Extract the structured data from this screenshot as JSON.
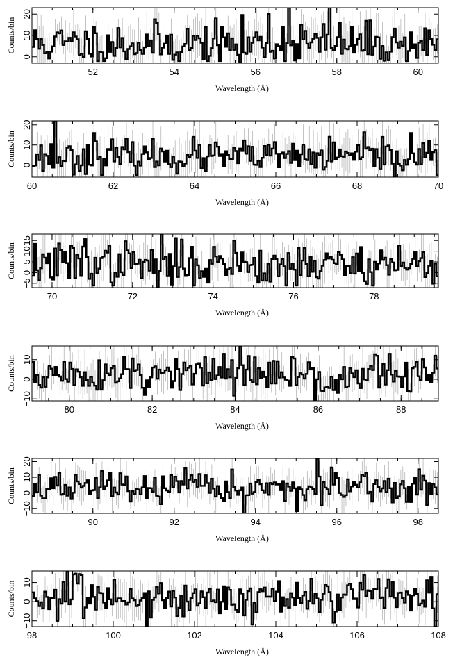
{
  "chart_data": [
    {
      "type": "line",
      "xlim": [
        50.5,
        60.5
      ],
      "ylim": [
        -3,
        23
      ],
      "xticks": [
        52,
        54,
        56,
        58,
        60
      ],
      "yticks": [
        0,
        10,
        20
      ],
      "xlabel": "Wavelength (Å)",
      "ylabel": "Counts/bin",
      "seed": 11,
      "base": 6,
      "amp": 5,
      "spikes": [
        [
          56.8,
          23
        ],
        [
          57.8,
          23
        ],
        [
          56.3,
          20
        ],
        [
          55.6,
          -3
        ],
        [
          57.1,
          15
        ]
      ],
      "series": [
        {
          "x_step": 0.05
        }
      ]
    },
    {
      "type": "line",
      "xlim": [
        60,
        70
      ],
      "ylim": [
        -6,
        22
      ],
      "xticks": [
        60,
        62,
        64,
        66,
        68,
        70
      ],
      "yticks": [
        0,
        10,
        20
      ],
      "xlabel": "Wavelength (Å)",
      "ylabel": "Counts/bin",
      "seed": 23,
      "base": 4,
      "amp": 4,
      "spikes": [
        [
          60.55,
          22
        ],
        [
          61.5,
          16
        ],
        [
          68.9,
          -6
        ],
        [
          68.6,
          14
        ],
        [
          69.3,
          16
        ]
      ],
      "series": [
        {
          "x_step": 0.05
        }
      ]
    },
    {
      "type": "line",
      "xlim": [
        69.5,
        79.6
      ],
      "ylim": [
        -7,
        18
      ],
      "xticks": [
        70,
        72,
        74,
        76,
        78
      ],
      "yticks": [
        -5,
        0,
        5,
        10,
        15
      ],
      "xlabel": "Wavelength (Å)",
      "ylabel": "Counts/bin",
      "seed": 37,
      "base": 4,
      "amp": 5,
      "spikes": [
        [
          72.7,
          18
        ],
        [
          72.6,
          -7
        ],
        [
          70.8,
          16
        ],
        [
          74.5,
          15
        ],
        [
          75.8,
          -6
        ]
      ],
      "series": [
        {
          "x_step": 0.05
        }
      ]
    },
    {
      "type": "line",
      "xlim": [
        79.1,
        88.9
      ],
      "ylim": [
        -11,
        17
      ],
      "xticks": [
        80,
        82,
        84,
        86,
        88
      ],
      "yticks": [
        -10,
        0,
        10
      ],
      "xlabel": "Wavelength (Å)",
      "ylabel": "Counts/bin",
      "seed": 51,
      "base": 2,
      "amp": 5,
      "spikes": [
        [
          84.1,
          17
        ],
        [
          85.9,
          -11
        ],
        [
          81.8,
          -8
        ],
        [
          83.7,
          13
        ],
        [
          87.7,
          13
        ]
      ],
      "series": [
        {
          "x_step": 0.05
        }
      ]
    },
    {
      "type": "line",
      "xlim": [
        88.5,
        98.5
      ],
      "ylim": [
        -13,
        22
      ],
      "xticks": [
        90,
        92,
        94,
        96,
        98
      ],
      "yticks": [
        -10,
        0,
        10,
        20
      ],
      "xlabel": "Wavelength (Å)",
      "ylabel": "Counts/bin",
      "seed": 67,
      "base": 3,
      "amp": 5,
      "spikes": [
        [
          95.5,
          22
        ],
        [
          93.7,
          -13
        ],
        [
          95.6,
          -8
        ],
        [
          93.4,
          15
        ],
        [
          90.4,
          13
        ]
      ],
      "series": [
        {
          "x_step": 0.05
        }
      ]
    },
    {
      "type": "line",
      "xlim": [
        98,
        108
      ],
      "ylim": [
        -13,
        16
      ],
      "xticks": [
        98,
        100,
        102,
        104,
        106,
        108
      ],
      "yticks": [
        -10,
        0,
        10
      ],
      "xlabel": "Wavelength (Å)",
      "ylabel": "Counts/bin",
      "seed": 83,
      "base": 2,
      "amp": 5,
      "spikes": [
        [
          98.85,
          16
        ],
        [
          100.8,
          -13
        ],
        [
          107.9,
          -13
        ],
        [
          107.8,
          13
        ],
        [
          98.6,
          -10
        ]
      ],
      "series": [
        {
          "x_step": 0.05
        }
      ]
    }
  ]
}
